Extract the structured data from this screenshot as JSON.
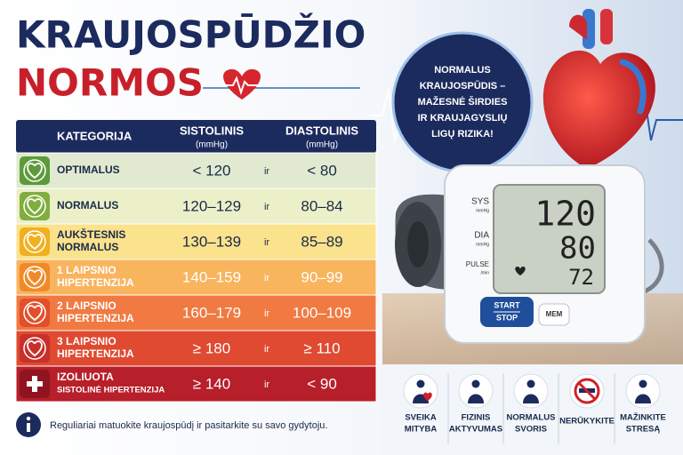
{
  "title": {
    "lines": [
      "KRAUJOSPŪDŽIO",
      "NORMOS"
    ]
  },
  "table": {
    "header": {
      "category": "KATEGORIJA",
      "systolic": "SISTOLINIS",
      "systolic_unit": "(mmHg)",
      "diastolic": "DIASTOLINIS",
      "diastolic_unit": "(mmHg)"
    },
    "rows": [
      {
        "category": [
          "OPTIMALUS"
        ],
        "systolic": "< 120",
        "joiner": "ir",
        "diastolic": "< 80"
      },
      {
        "category": [
          "NORMALUS"
        ],
        "systolic": "120–129",
        "joiner": "ir",
        "diastolic": "80–84"
      },
      {
        "category": [
          "AUKŠTESNIS",
          "NORMALUS"
        ],
        "systolic": "130–139",
        "joiner": "ir",
        "diastolic": "85–89"
      },
      {
        "category": [
          "1 LAIPSNIO",
          "HIPERTENZIJA"
        ],
        "systolic": "140–159",
        "joiner": "ir",
        "diastolic": "90–99"
      },
      {
        "category": [
          "2 LAIPSNIO",
          "HIPERTENZIJA"
        ],
        "systolic": "160–179",
        "joiner": "ir",
        "diastolic": "100–109"
      },
      {
        "category": [
          "3 LAIPSNIO",
          "HIPERTENZIJA"
        ],
        "systolic": "≥ 180",
        "joiner": "ir",
        "diastolic": "≥ 110"
      },
      {
        "category": [
          "IZOLIUOTA",
          "SISTOLINĖ HIPERTENZIJA"
        ],
        "systolic": "≥ 140",
        "joiner": "ir",
        "diastolic": "< 90"
      }
    ]
  },
  "note": "Reguliariai matuokite kraujospūdį ir pasitarkite su savo gydytoju.",
  "bubble": {
    "lines": [
      "NORMALUS",
      "KRAUJOSPŪDIS –",
      "MAŽESNĖ ŠIRDIES",
      "IR KRAUJAGYSLIŲ",
      "LIGŲ RIZIKA!"
    ]
  },
  "monitor": {
    "sys_label": "SYS",
    "sys_unit": "mmHg",
    "dia_label": "DIA",
    "dia_unit": "mmHg",
    "pulse_label": "PULSE",
    "pulse_unit": "/min",
    "sys": "120",
    "dia": "80",
    "pulse": "72",
    "start": "START",
    "stop": "STOP",
    "mem": "MEM"
  },
  "tips": [
    {
      "lines": [
        "SVEIKA",
        "MITYBA"
      ]
    },
    {
      "lines": [
        "FIZINIS",
        "AKTYVUMAS"
      ]
    },
    {
      "lines": [
        "NORMALUS",
        "SVORIS"
      ]
    },
    {
      "lines": [
        "NERŪKYKITE"
      ]
    },
    {
      "lines": [
        "MAŽINKITE",
        "STRESĄ"
      ]
    }
  ]
}
